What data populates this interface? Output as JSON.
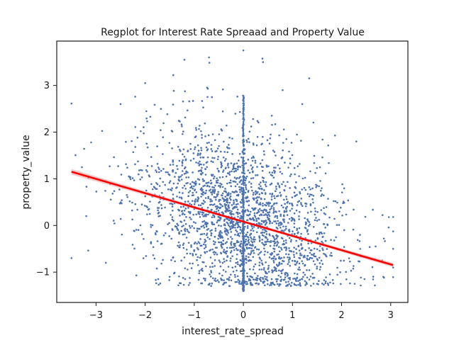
{
  "chart_data": {
    "type": "scatter",
    "title": "Regplot for Interest Rate Spreaad and Property Value",
    "xlabel": "interest_rate_spread",
    "ylabel": "property_value",
    "xlim": [
      -3.8,
      3.35
    ],
    "ylim": [
      -1.65,
      3.95
    ],
    "xticks": [
      -3,
      -2,
      -1,
      0,
      1,
      2,
      3
    ],
    "yticks": [
      -1,
      0,
      1,
      2,
      3
    ],
    "grid": false,
    "colors": {
      "points": "#4c72b0",
      "regression_line": "#ff0000",
      "confidence_band": "#f4a6a6"
    },
    "regression_line": {
      "x": [
        -3.5,
        3.05
      ],
      "y": [
        1.15,
        -0.85
      ]
    },
    "points": {
      "description_of_cloud": "dense cloud centered near x=0, y=-0.3; vertical stack of points at x=0 from y=-1.4 to y=3.75",
      "sample": [
        {
          "x": -3.5,
          "y": -0.7
        },
        {
          "x": -3.1,
          "y": 1.78
        },
        {
          "x": -3.2,
          "y": 0.2
        },
        {
          "x": -2.8,
          "y": -0.8
        },
        {
          "x": -2.5,
          "y": 2.6
        },
        {
          "x": -2.0,
          "y": 3.05
        },
        {
          "x": -1.2,
          "y": 3.55
        },
        {
          "x": -0.7,
          "y": 3.6
        },
        {
          "x": 0.0,
          "y": 3.75
        },
        {
          "x": 0.4,
          "y": 3.5
        },
        {
          "x": 0.8,
          "y": 2.9
        },
        {
          "x": 1.2,
          "y": 2.6
        },
        {
          "x": 2.3,
          "y": 1.8
        },
        {
          "x": 3.05,
          "y": 0.18
        },
        {
          "x": 2.85,
          "y": -1.1
        },
        {
          "x": 0.0,
          "y": -1.4
        },
        {
          "x": -1.5,
          "y": -1.1
        },
        {
          "x": 1.5,
          "y": -1.25
        }
      ],
      "n_generated": 2600
    }
  }
}
